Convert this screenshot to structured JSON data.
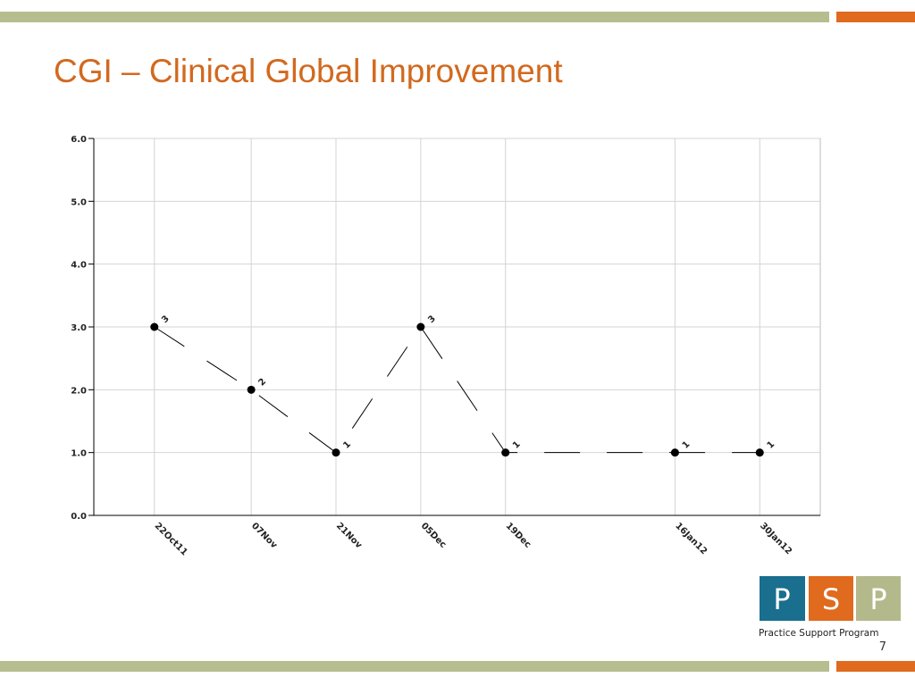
{
  "slide": {
    "title": "CGI – Clinical Global Improvement",
    "page_number": "7",
    "logo": {
      "letters": [
        "P",
        "S",
        "P"
      ],
      "caption": "Practice Support Program"
    }
  },
  "chart_data": {
    "type": "line",
    "x": [
      "22Oct11",
      "07Nov",
      "21Nov",
      "05Dec",
      "19Dec",
      "16Jan12",
      "30Jan12"
    ],
    "series": [
      {
        "name": "CGI",
        "color": "#000000",
        "values": [
          3,
          2,
          1,
          3,
          1,
          1,
          1
        ]
      }
    ],
    "ylim": [
      0,
      6
    ],
    "yticks": [
      {
        "value": 0,
        "label": "0.0"
      },
      {
        "value": 1,
        "label": "1.0"
      },
      {
        "value": 2,
        "label": "2.0"
      },
      {
        "value": 3,
        "label": "3.0"
      },
      {
        "value": 4,
        "label": "4.0"
      },
      {
        "value": 5,
        "label": "5.0"
      },
      {
        "value": 6,
        "label": "6.0"
      }
    ],
    "grid": true
  }
}
